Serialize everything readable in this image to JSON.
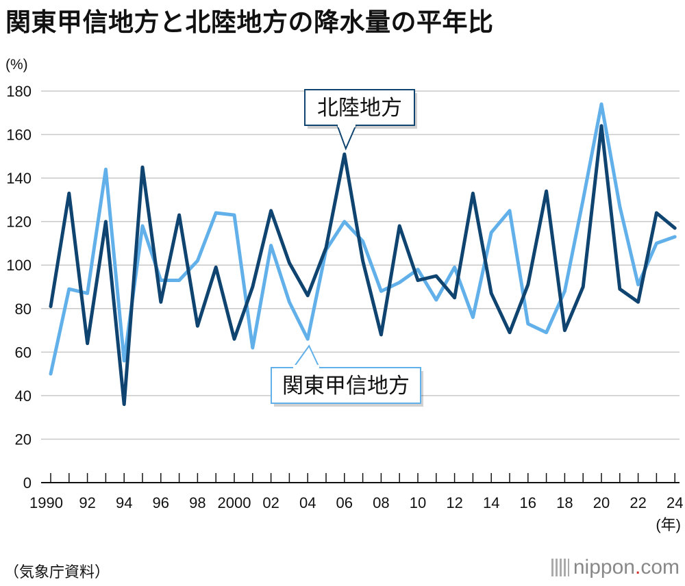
{
  "chart_data": {
    "type": "line",
    "title": "関東甲信地方と北陸地方の降水量の平年比",
    "ylabel": "(%)",
    "xlabel": "(年)",
    "ylim": [
      0,
      180
    ],
    "y_ticks": [
      0,
      20,
      40,
      60,
      80,
      100,
      120,
      140,
      160,
      180
    ],
    "x": [
      1990,
      1991,
      1992,
      1993,
      1994,
      1995,
      1996,
      1997,
      1998,
      1999,
      2000,
      2001,
      2002,
      2003,
      2004,
      2005,
      2006,
      2007,
      2008,
      2009,
      2010,
      2011,
      2012,
      2013,
      2014,
      2015,
      2016,
      2017,
      2018,
      2019,
      2020,
      2021,
      2022,
      2023,
      2024
    ],
    "x_tick_labels": [
      {
        "year": 1990,
        "label": "1990"
      },
      {
        "year": 1992,
        "label": "92"
      },
      {
        "year": 1994,
        "label": "94"
      },
      {
        "year": 1996,
        "label": "96"
      },
      {
        "year": 1998,
        "label": "98"
      },
      {
        "year": 2000,
        "label": "2000"
      },
      {
        "year": 2002,
        "label": "02"
      },
      {
        "year": 2004,
        "label": "04"
      },
      {
        "year": 2006,
        "label": "06"
      },
      {
        "year": 2008,
        "label": "08"
      },
      {
        "year": 2010,
        "label": "10"
      },
      {
        "year": 2012,
        "label": "12"
      },
      {
        "year": 2014,
        "label": "14"
      },
      {
        "year": 2016,
        "label": "16"
      },
      {
        "year": 2018,
        "label": "18"
      },
      {
        "year": 2020,
        "label": "20"
      },
      {
        "year": 2022,
        "label": "22"
      },
      {
        "year": 2024,
        "label": "24"
      }
    ],
    "series": [
      {
        "name": "北陸地方",
        "color": "#0f4470",
        "values": [
          81,
          133,
          64,
          120,
          36,
          145,
          83,
          123,
          72,
          99,
          66,
          90,
          125,
          101,
          86,
          108,
          151,
          102,
          68,
          118,
          93,
          95,
          85,
          133,
          87,
          69,
          91,
          134,
          70,
          90,
          164,
          89,
          83,
          124,
          117
        ],
        "callout_year": 2006
      },
      {
        "name": "関東甲信地方",
        "color": "#62b0ea",
        "values": [
          50,
          89,
          87,
          144,
          56,
          118,
          93,
          93,
          102,
          124,
          123,
          62,
          109,
          83,
          66,
          107,
          120,
          111,
          88,
          92,
          98,
          84,
          99,
          76,
          115,
          125,
          73,
          69,
          88,
          130,
          174,
          127,
          91,
          110,
          113
        ],
        "callout_year": 2004
      }
    ],
    "grid": true
  },
  "footer": {
    "source": "（気象庁資料）",
    "brand_main": "nippon",
    "brand_dot": ".",
    "brand_tld": "com"
  }
}
